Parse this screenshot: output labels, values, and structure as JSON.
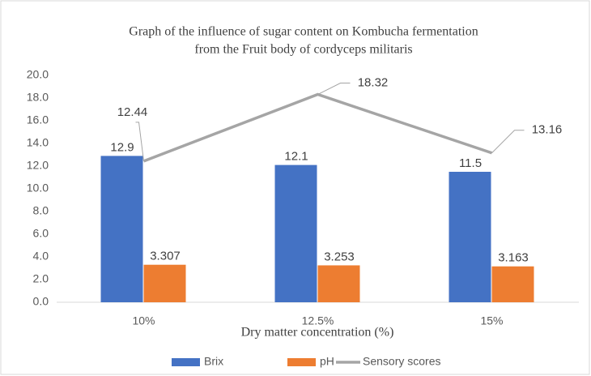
{
  "chart_data": {
    "type": "bar",
    "title": [
      "Graph of the influence of sugar content on Kombucha fermentation",
      "from the Fruit body of cordyceps militaris"
    ],
    "x_label": "Dry matter concentration (%)",
    "categories": [
      "10%",
      "12.5%",
      "15%"
    ],
    "series": [
      {
        "name": "Brix",
        "color": "#4472c4",
        "values": [
          12.9,
          12.1,
          11.5
        ]
      },
      {
        "name": "pH",
        "color": "#ed7d31",
        "values": [
          3.307,
          3.253,
          3.163
        ]
      },
      {
        "name": "Sensory scores",
        "type": "line",
        "color": "#a5a5a5",
        "values": [
          12.44,
          18.32,
          13.16
        ]
      }
    ],
    "ylim": [
      0,
      20
    ],
    "yticks": [
      {
        "value": 0,
        "label": "0.0"
      },
      {
        "value": 2,
        "label": "2.0"
      },
      {
        "value": 4,
        "label": "4.0"
      },
      {
        "value": 6,
        "label": "6.0"
      },
      {
        "value": 8,
        "label": "8.0"
      },
      {
        "value": 10,
        "label": "10.0"
      },
      {
        "value": 12,
        "label": "12.0"
      },
      {
        "value": 14,
        "label": "14.0"
      },
      {
        "value": 16,
        "label": "16.0"
      },
      {
        "value": 18,
        "label": "18.0"
      },
      {
        "value": 20,
        "label": "20.0"
      }
    ],
    "grid": false,
    "legend": "bottom"
  }
}
